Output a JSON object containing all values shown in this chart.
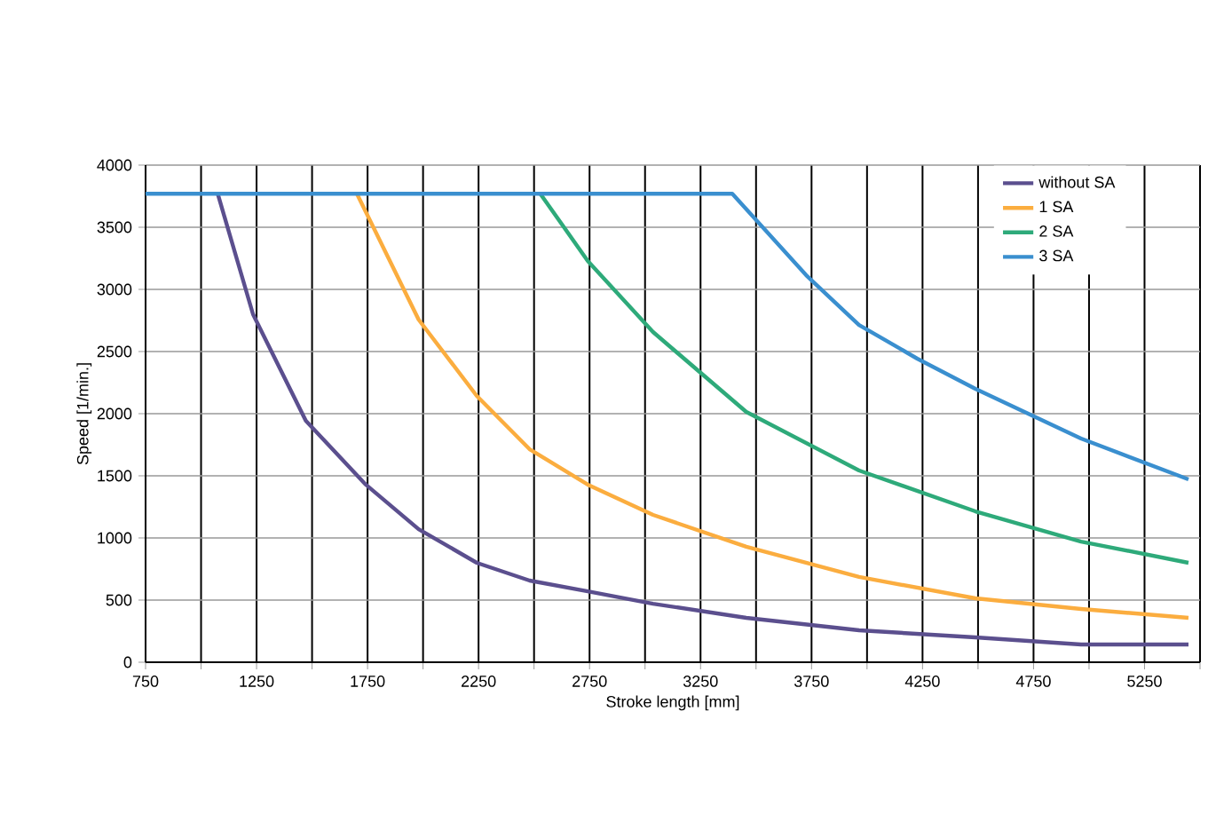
{
  "chart_data": {
    "type": "line",
    "xlabel": "Stroke length [mm]",
    "ylabel": "Speed [1/min.]",
    "xlim": [
      750,
      5500
    ],
    "ylim": [
      0,
      4000
    ],
    "xticks": [
      750,
      {
        "value": 1000,
        "label": null
      },
      1250,
      {
        "value": 1500,
        "label": null
      },
      1750,
      {
        "value": 2000,
        "label": null
      },
      2250,
      {
        "value": 2500,
        "label": null
      },
      2750,
      {
        "value": 3000,
        "label": null
      },
      3250,
      {
        "value": 3500,
        "label": null
      },
      3750,
      {
        "value": 4000,
        "label": null
      },
      4250,
      {
        "value": 4500,
        "label": null
      },
      4750,
      {
        "value": 5000,
        "label": null
      },
      5250,
      {
        "value": 5500,
        "label": null
      }
    ],
    "yticks": [
      0,
      500,
      1000,
      1500,
      2000,
      2500,
      3000,
      3500,
      4000
    ],
    "grid": true,
    "legend": "top right",
    "marker": "none",
    "line_style": "solid",
    "series": [
      {
        "name": "without SA",
        "color": "#5b4f8e",
        "x": [
          1075,
          1234,
          1472,
          1742,
          1980,
          2242,
          2480,
          2742,
          3036,
          3456,
          3964,
          4488,
          4964,
          5448
        ],
        "values": [
          3770,
          2800,
          1943,
          1429,
          1071,
          800,
          657,
          571,
          471,
          357,
          257,
          200,
          143,
          143
        ]
      },
      {
        "name": "1 SA",
        "color": "#fbad3f",
        "x": [
          1702,
          1980,
          2242,
          2480,
          2742,
          3036,
          3456,
          3964,
          4488,
          4964,
          5448
        ],
        "values": [
          3770,
          2757,
          2143,
          1714,
          1429,
          1186,
          929,
          686,
          514,
          429,
          357
        ]
      },
      {
        "name": "2 SA",
        "color": "#2eaa7a",
        "x": [
          2528,
          2742,
          3036,
          3456,
          3964,
          4488,
          4964,
          5448
        ],
        "values": [
          3770,
          3229,
          2657,
          2014,
          1543,
          1214,
          971,
          800
        ]
      },
      {
        "name": "3 SA",
        "color": "#3a8fcf",
        "x": [
          750,
          3393,
          3726,
          3964,
          4226,
          4488,
          4964,
          5448
        ],
        "values": [
          3770,
          3770,
          3114,
          2714,
          2443,
          2200,
          1800,
          1471
        ]
      }
    ]
  }
}
